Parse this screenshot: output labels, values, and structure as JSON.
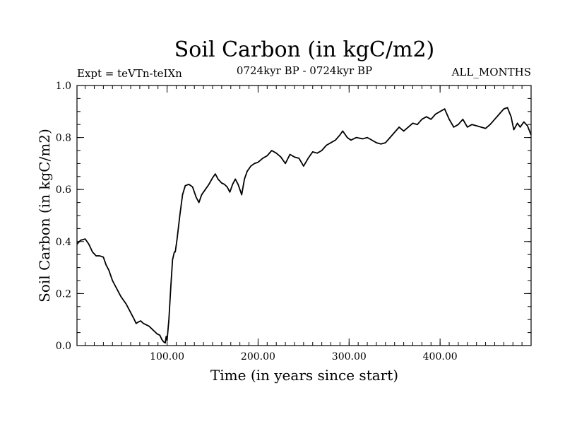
{
  "chart_data": {
    "type": "line",
    "title": "Soil Carbon (in kgC/m2)",
    "subtitle_left": "Expt = teVTn-teIXn",
    "subtitle_center": "0724kyr BP - 0724kyr BP",
    "subtitle_right": "ALL_MONTHS",
    "xlabel": "Time (in years since start)",
    "ylabel": "Soil Carbon (in kgC/m2)",
    "xlim": [
      1,
      500
    ],
    "ylim": [
      0.0,
      1.0
    ],
    "x_ticks": [
      {
        "value": 100,
        "label": "100.00"
      },
      {
        "value": 200,
        "label": "200.00"
      },
      {
        "value": 300,
        "label": "300.00"
      },
      {
        "value": 400,
        "label": "400.00"
      }
    ],
    "y_ticks": [
      {
        "value": 0.0,
        "label": "0.0"
      },
      {
        "value": 0.2,
        "label": "0.2"
      },
      {
        "value": 0.4,
        "label": "0.4"
      },
      {
        "value": 0.6,
        "label": "0.6"
      },
      {
        "value": 0.8,
        "label": "0.8"
      },
      {
        "value": 1.0,
        "label": "1.0"
      }
    ],
    "grid": false,
    "series": [
      {
        "name": "Soil Carbon",
        "color": "#000000",
        "points": [
          [
            1,
            0.39
          ],
          [
            5,
            0.405
          ],
          [
            10,
            0.41
          ],
          [
            14,
            0.39
          ],
          [
            18,
            0.36
          ],
          [
            22,
            0.345
          ],
          [
            26,
            0.345
          ],
          [
            30,
            0.34
          ],
          [
            33,
            0.31
          ],
          [
            36,
            0.29
          ],
          [
            38,
            0.27
          ],
          [
            40,
            0.25
          ],
          [
            43,
            0.23
          ],
          [
            46,
            0.21
          ],
          [
            49,
            0.19
          ],
          [
            52,
            0.175
          ],
          [
            55,
            0.16
          ],
          [
            58,
            0.14
          ],
          [
            61,
            0.12
          ],
          [
            64,
            0.1
          ],
          [
            66,
            0.085
          ],
          [
            68,
            0.09
          ],
          [
            71,
            0.095
          ],
          [
            74,
            0.085
          ],
          [
            77,
            0.08
          ],
          [
            80,
            0.075
          ],
          [
            83,
            0.065
          ],
          [
            86,
            0.055
          ],
          [
            89,
            0.045
          ],
          [
            92,
            0.04
          ],
          [
            94,
            0.025
          ],
          [
            96,
            0.015
          ],
          [
            98,
            0.01
          ],
          [
            99,
            0.035
          ],
          [
            100,
            0.02
          ],
          [
            102,
            0.1
          ],
          [
            104,
            0.22
          ],
          [
            106,
            0.33
          ],
          [
            108,
            0.36
          ],
          [
            109,
            0.36
          ],
          [
            111,
            0.41
          ],
          [
            114,
            0.5
          ],
          [
            117,
            0.58
          ],
          [
            120,
            0.615
          ],
          [
            124,
            0.62
          ],
          [
            128,
            0.61
          ],
          [
            132,
            0.57
          ],
          [
            135,
            0.55
          ],
          [
            138,
            0.58
          ],
          [
            142,
            0.6
          ],
          [
            146,
            0.62
          ],
          [
            150,
            0.645
          ],
          [
            153,
            0.66
          ],
          [
            156,
            0.64
          ],
          [
            160,
            0.625
          ],
          [
            163,
            0.62
          ],
          [
            166,
            0.61
          ],
          [
            169,
            0.59
          ],
          [
            172,
            0.62
          ],
          [
            175,
            0.64
          ],
          [
            178,
            0.62
          ],
          [
            180,
            0.6
          ],
          [
            182,
            0.58
          ],
          [
            185,
            0.64
          ],
          [
            188,
            0.67
          ],
          [
            192,
            0.69
          ],
          [
            196,
            0.7
          ],
          [
            200,
            0.705
          ],
          [
            205,
            0.72
          ],
          [
            210,
            0.73
          ],
          [
            215,
            0.75
          ],
          [
            220,
            0.74
          ],
          [
            225,
            0.725
          ],
          [
            230,
            0.7
          ],
          [
            235,
            0.735
          ],
          [
            240,
            0.725
          ],
          [
            245,
            0.72
          ],
          [
            250,
            0.69
          ],
          [
            255,
            0.72
          ],
          [
            260,
            0.745
          ],
          [
            265,
            0.74
          ],
          [
            270,
            0.75
          ],
          [
            275,
            0.77
          ],
          [
            280,
            0.78
          ],
          [
            285,
            0.79
          ],
          [
            290,
            0.81
          ],
          [
            293,
            0.825
          ],
          [
            298,
            0.8
          ],
          [
            302,
            0.79
          ],
          [
            308,
            0.8
          ],
          [
            315,
            0.795
          ],
          [
            320,
            0.8
          ],
          [
            325,
            0.79
          ],
          [
            330,
            0.78
          ],
          [
            335,
            0.775
          ],
          [
            340,
            0.78
          ],
          [
            345,
            0.8
          ],
          [
            350,
            0.82
          ],
          [
            355,
            0.84
          ],
          [
            360,
            0.825
          ],
          [
            365,
            0.84
          ],
          [
            370,
            0.855
          ],
          [
            375,
            0.85
          ],
          [
            380,
            0.87
          ],
          [
            385,
            0.88
          ],
          [
            390,
            0.87
          ],
          [
            395,
            0.89
          ],
          [
            400,
            0.9
          ],
          [
            405,
            0.91
          ],
          [
            410,
            0.87
          ],
          [
            415,
            0.84
          ],
          [
            420,
            0.85
          ],
          [
            425,
            0.87
          ],
          [
            430,
            0.84
          ],
          [
            435,
            0.85
          ],
          [
            440,
            0.845
          ],
          [
            445,
            0.84
          ],
          [
            450,
            0.835
          ],
          [
            455,
            0.85
          ],
          [
            460,
            0.87
          ],
          [
            465,
            0.89
          ],
          [
            470,
            0.91
          ],
          [
            474,
            0.915
          ],
          [
            478,
            0.88
          ],
          [
            481,
            0.83
          ],
          [
            485,
            0.855
          ],
          [
            488,
            0.84
          ],
          [
            492,
            0.86
          ],
          [
            496,
            0.845
          ],
          [
            500,
            0.81
          ]
        ]
      }
    ]
  }
}
